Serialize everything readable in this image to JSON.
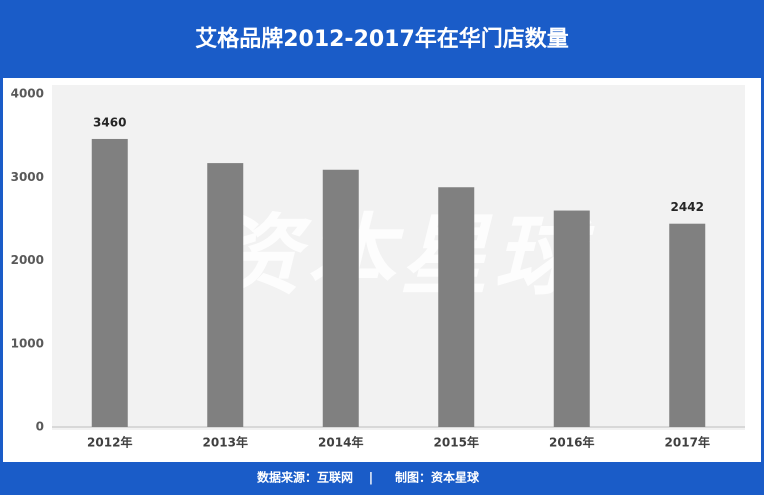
{
  "chart_data": {
    "type": "bar",
    "title": "艾格品牌2012-2017年在华门店数量",
    "categories": [
      "2012年",
      "2013年",
      "2014年",
      "2015年",
      "2016年",
      "2017年"
    ],
    "values": [
      3460,
      3170,
      3090,
      2880,
      2600,
      2442
    ],
    "value_labels": [
      "3460",
      null,
      null,
      null,
      null,
      "2442"
    ],
    "color": "#808080",
    "ylim": [
      0,
      4000
    ],
    "yticks": [
      0,
      1000,
      2000,
      3000,
      4000
    ],
    "grid": false,
    "watermark": "资本星球",
    "source": "数据来源：互联网",
    "separator": "|",
    "credit": "制图：资本星球"
  }
}
